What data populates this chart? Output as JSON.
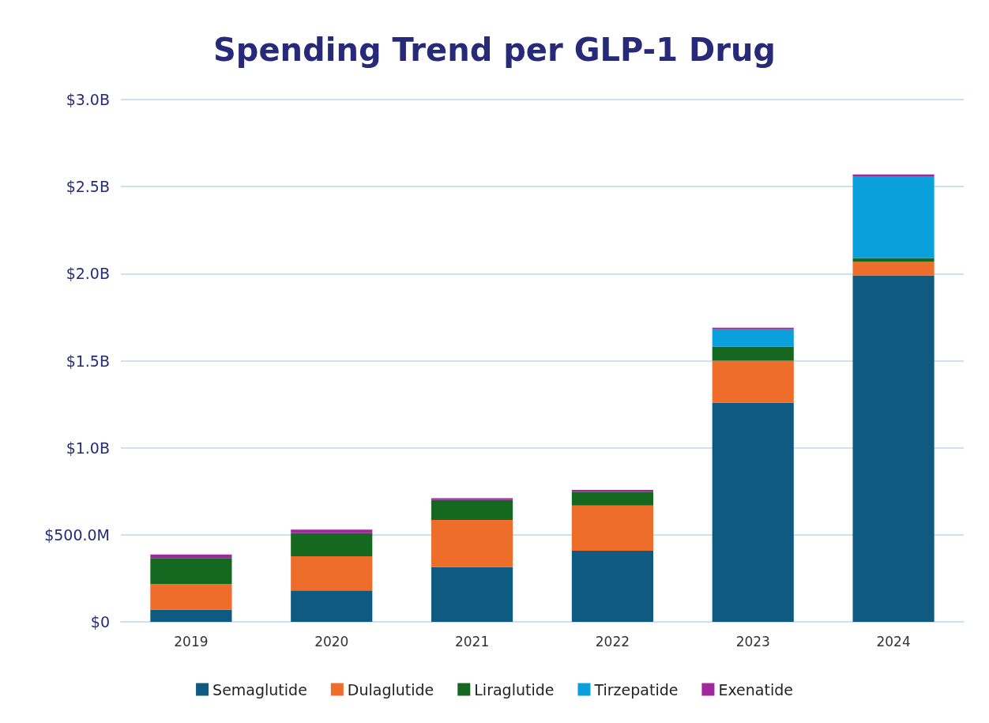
{
  "chart_data": {
    "type": "bar",
    "title": "Spending Trend per GLP-1 Drug",
    "stacked": true,
    "categories": [
      "2019",
      "2020",
      "2021",
      "2022",
      "2023",
      "2024"
    ],
    "series": [
      {
        "name": "Semaglutide",
        "color": "#0e5a80",
        "values": [
          70000000,
          180000000,
          315000000,
          408000000,
          1260000000,
          1990000000
        ]
      },
      {
        "name": "Dulaglutide",
        "color": "#ee6d2a",
        "values": [
          147000000,
          197000000,
          270000000,
          260000000,
          240000000,
          80000000
        ]
      },
      {
        "name": "Liraglutide",
        "color": "#15681f",
        "values": [
          150000000,
          133000000,
          115000000,
          80000000,
          80000000,
          20000000
        ]
      },
      {
        "name": "Tirzepatide",
        "color": "#0aa0dc",
        "values": [
          null,
          null,
          null,
          null,
          100000000,
          470000000
        ]
      },
      {
        "name": "Exenatide",
        "color": "#a0289c",
        "values": [
          20000000,
          20000000,
          10000000,
          10000000,
          10000000,
          10000000
        ]
      }
    ],
    "ylim": [
      0,
      3000000000
    ],
    "yticks": [
      {
        "value": 0,
        "label": "$0"
      },
      {
        "value": 500000000,
        "label": "$500.0M"
      },
      {
        "value": 1000000000,
        "label": "$1.0B"
      },
      {
        "value": 1500000000,
        "label": "$1.5B"
      },
      {
        "value": 2000000000,
        "label": "$2.0B"
      },
      {
        "value": 2500000000,
        "label": "$2.5B"
      },
      {
        "value": 3000000000,
        "label": "$3.0B"
      }
    ],
    "grid": "y",
    "legend": "bottom"
  }
}
